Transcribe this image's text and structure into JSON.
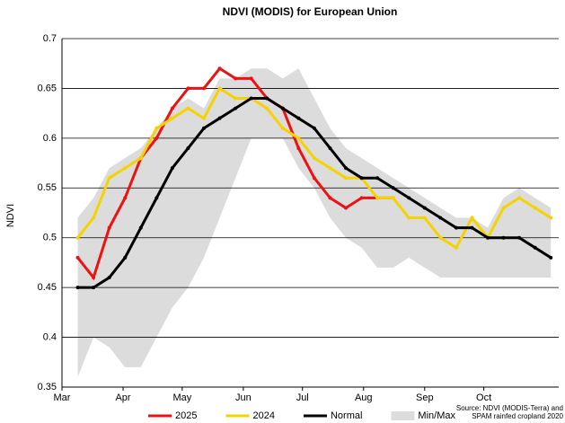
{
  "chart_data": {
    "type": "line",
    "title": "NDVI (MODIS) for European Union",
    "y_label": "NDVI",
    "source": [
      "Source: NDVI (MODIS-Terra) and",
      "SPAM rainfed cropland 2020"
    ],
    "x": [
      68,
      76,
      84,
      92,
      100,
      108,
      116,
      124,
      132,
      140,
      148,
      156,
      164,
      172,
      180,
      188,
      196,
      204,
      212,
      220,
      228,
      236,
      244,
      252,
      260,
      268,
      276,
      284,
      292,
      300,
      308
    ],
    "xlim": [
      60,
      312
    ],
    "xticks": [
      {
        "value": 60,
        "label": "Mar"
      },
      {
        "value": 91,
        "label": "Apr"
      },
      {
        "value": 121,
        "label": "May"
      },
      {
        "value": 152,
        "label": "Jun"
      },
      {
        "value": 182,
        "label": "Jul"
      },
      {
        "value": 213,
        "label": "Aug"
      },
      {
        "value": 244,
        "label": "Sep"
      },
      {
        "value": 274,
        "label": "Oct"
      }
    ],
    "ylim": [
      0.35,
      0.7
    ],
    "yticks": [
      0.35,
      0.4,
      0.45,
      0.5,
      0.55,
      0.6,
      0.65,
      0.7
    ],
    "grid": true,
    "legend": "bottom",
    "band": {
      "name": "Min/Max",
      "color": "#dcdcdc",
      "max": [
        0.52,
        0.54,
        0.57,
        0.58,
        0.59,
        0.61,
        0.63,
        0.64,
        0.63,
        0.66,
        0.66,
        0.67,
        0.67,
        0.66,
        0.67,
        0.64,
        0.61,
        0.59,
        0.58,
        0.57,
        0.56,
        0.55,
        0.54,
        0.53,
        0.52,
        0.52,
        0.51,
        0.54,
        0.55,
        0.54,
        0.53
      ],
      "min": [
        0.36,
        0.4,
        0.39,
        0.37,
        0.37,
        0.4,
        0.43,
        0.45,
        0.48,
        0.52,
        0.56,
        0.6,
        0.6,
        0.6,
        0.57,
        0.55,
        0.52,
        0.5,
        0.49,
        0.47,
        0.47,
        0.48,
        0.47,
        0.46,
        0.46,
        0.46,
        0.46,
        0.46,
        0.46,
        0.46,
        0.46
      ]
    },
    "series": [
      {
        "name": "2025",
        "color": "#ee1111",
        "values": [
          0.48,
          0.46,
          0.51,
          0.54,
          0.58,
          0.6,
          0.63,
          0.65,
          0.65,
          0.67,
          0.66,
          0.66,
          0.64,
          0.63,
          0.59,
          0.56,
          0.54,
          0.53,
          0.54,
          0.54,
          0.54,
          null,
          null,
          null,
          null,
          null,
          null,
          null,
          null,
          null,
          null
        ]
      },
      {
        "name": "2024",
        "color": "#f5d300",
        "values": [
          0.5,
          0.52,
          0.56,
          0.57,
          0.58,
          0.61,
          0.62,
          0.63,
          0.62,
          0.65,
          0.64,
          0.64,
          0.63,
          0.61,
          0.6,
          0.58,
          0.57,
          0.56,
          0.56,
          0.54,
          0.54,
          0.52,
          0.52,
          0.5,
          0.49,
          0.52,
          0.5,
          0.53,
          0.54,
          0.53,
          0.52
        ]
      },
      {
        "name": "Normal",
        "color": "#000000",
        "values": [
          0.45,
          0.45,
          0.46,
          0.48,
          0.51,
          0.54,
          0.57,
          0.59,
          0.61,
          0.62,
          0.63,
          0.64,
          0.64,
          0.63,
          0.62,
          0.61,
          0.59,
          0.57,
          0.56,
          0.56,
          0.55,
          0.54,
          0.53,
          0.52,
          0.51,
          0.51,
          0.5,
          0.5,
          0.5,
          0.49,
          0.48
        ]
      }
    ]
  }
}
